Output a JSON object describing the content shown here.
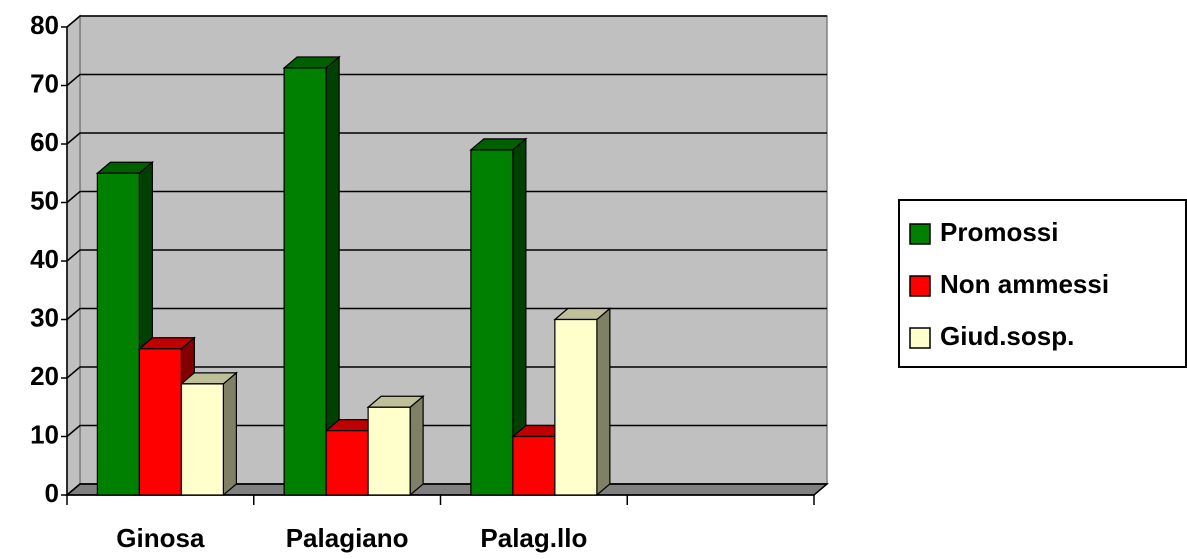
{
  "chart_data": {
    "type": "bar3d",
    "categories": [
      "Ginosa",
      "Palagiano",
      "Palag.llo",
      null
    ],
    "series": [
      {
        "name": "Promossi",
        "color": "#008000",
        "values": [
          55,
          73,
          59,
          null
        ]
      },
      {
        "name": "Non ammessi",
        "color": "#ff0000",
        "values": [
          25,
          11,
          10,
          null
        ]
      },
      {
        "name": "Giud.sosp.",
        "color": "#ffffcc",
        "values": [
          19,
          15,
          30,
          null
        ]
      }
    ],
    "ylim": [
      0,
      80
    ],
    "yticks": [
      0,
      10,
      20,
      30,
      40,
      50,
      60,
      70,
      80
    ],
    "grid": true,
    "legend": "right"
  }
}
